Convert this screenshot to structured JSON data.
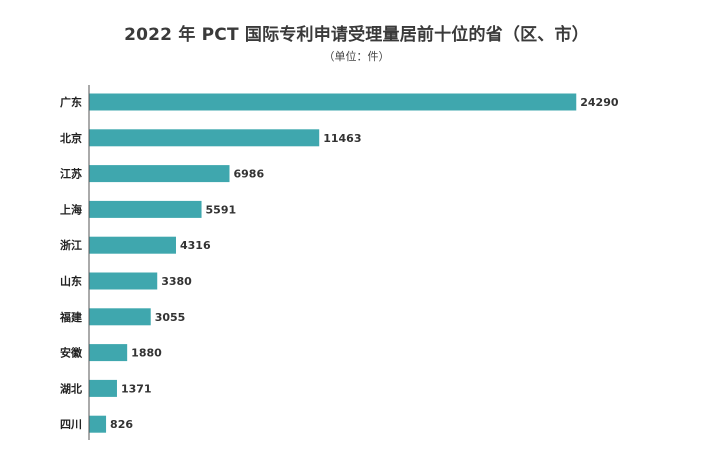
{
  "chart_data": {
    "type": "bar",
    "orientation": "horizontal",
    "title": "2022 年 PCT 国际专利申请受理量居前十位的省（区、市）",
    "subtitle": "（单位：件）",
    "categories": [
      "广东",
      "北京",
      "江苏",
      "上海",
      "浙江",
      "山东",
      "福建",
      "安徽",
      "湖北",
      "四川"
    ],
    "values": [
      24290,
      11463,
      6986,
      5591,
      4316,
      3380,
      3055,
      1880,
      1371,
      826
    ],
    "value_labels": [
      "24290",
      "11463",
      "6986",
      "5591",
      "4316",
      "3380",
      "3055",
      "1880",
      "1371",
      "826"
    ],
    "xlim": [
      0,
      25300
    ],
    "grid": false,
    "legend": "none",
    "bar_color": "#3fa7ae",
    "axis_color": "#555555"
  }
}
